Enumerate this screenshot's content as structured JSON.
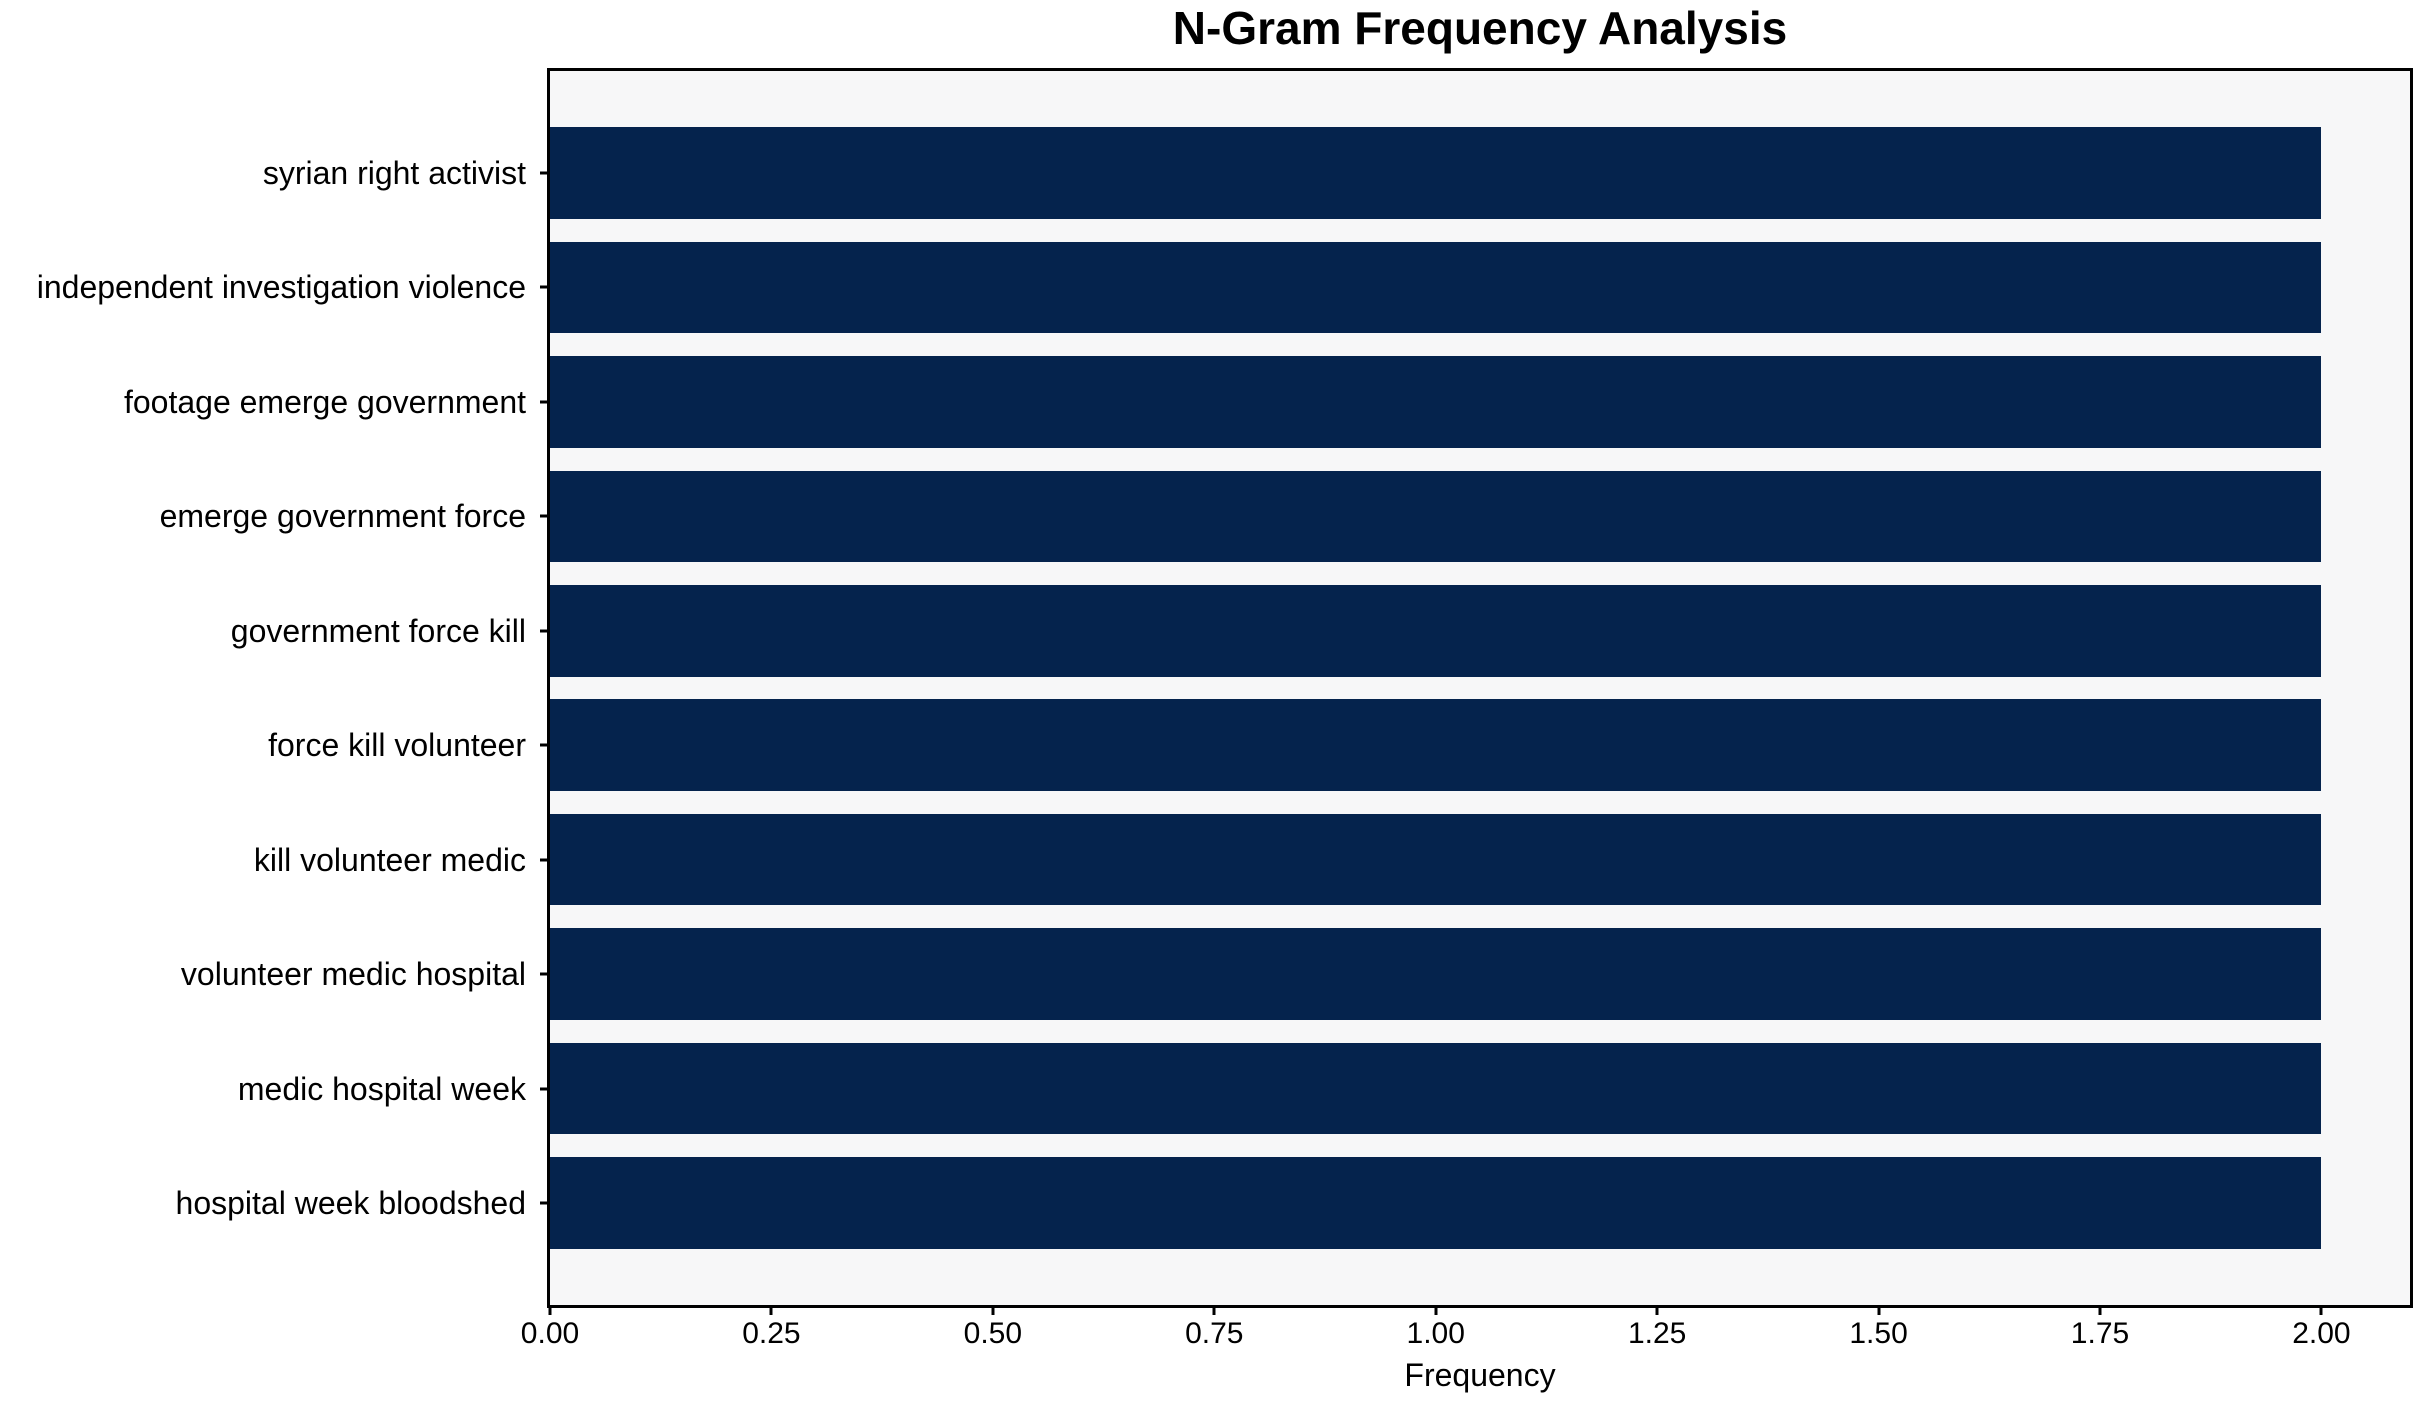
{
  "chart_data": {
    "type": "bar",
    "orientation": "horizontal",
    "title": "N-Gram Frequency Analysis",
    "xlabel": "Frequency",
    "ylabel": "",
    "categories": [
      "syrian right activist",
      "independent investigation violence",
      "footage emerge government",
      "emerge government force",
      "government force kill",
      "force kill volunteer",
      "kill volunteer medic",
      "volunteer medic hospital",
      "medic hospital week",
      "hospital week bloodshed"
    ],
    "values": [
      2.0,
      2.0,
      2.0,
      2.0,
      2.0,
      2.0,
      2.0,
      2.0,
      2.0,
      2.0
    ],
    "xlim": [
      0,
      2.1
    ],
    "xticks": [
      0.0,
      0.25,
      0.5,
      0.75,
      1.0,
      1.25,
      1.5,
      1.75,
      2.0
    ],
    "xtick_labels": [
      "0.00",
      "0.25",
      "0.50",
      "0.75",
      "1.00",
      "1.25",
      "1.50",
      "1.75",
      "2.00"
    ],
    "bar_height": 0.8,
    "y_margin": 0.05,
    "grid": false,
    "legend": "none",
    "colors": {
      "bar": "#05234d",
      "plot_background": "#f7f7f8",
      "figure_background": "#ffffff",
      "spine": "#000000",
      "text": "#000000"
    }
  }
}
